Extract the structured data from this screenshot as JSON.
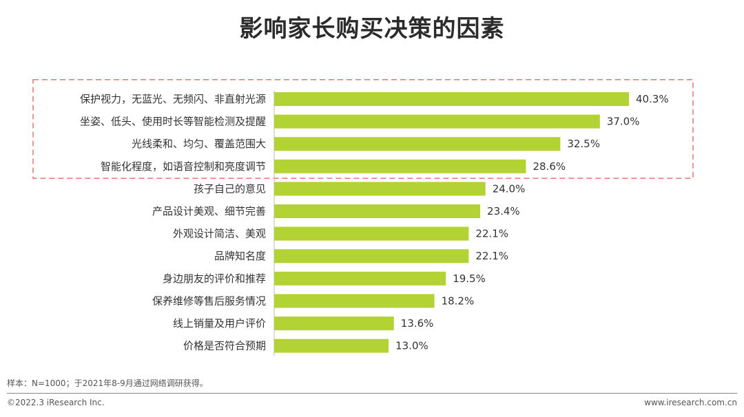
{
  "title": "影响家长购买决策的因素",
  "chart_data": {
    "type": "bar",
    "orientation": "horizontal",
    "categories": [
      "保护视力，无蓝光、无频闪、非直射光源",
      "坐姿、低头、使用时长等智能检测及提醒",
      "光线柔和、均匀、覆盖范围大",
      "智能化程度，如语音控制和亮度调节",
      "孩子自己的意见",
      "产品设计美观、细节完善",
      "外观设计简洁、美观",
      "品牌知名度",
      "身边朋友的评价和推荐",
      "保养维修等售后服务情况",
      "线上销量及用户评价",
      "价格是否符合预期"
    ],
    "values": [
      40.3,
      37.0,
      32.5,
      28.6,
      24.0,
      23.4,
      22.1,
      22.1,
      19.5,
      18.2,
      13.6,
      13.0
    ],
    "value_labels": [
      "40.3%",
      "37.0%",
      "32.5%",
      "28.6%",
      "24.0%",
      "23.4%",
      "22.1%",
      "22.1%",
      "19.5%",
      "18.2%",
      "13.6%",
      "13.0%"
    ],
    "bar_color": "#b3d335",
    "highlight_color": "#e57373",
    "highlight_count": 4,
    "xlim": [
      0,
      45
    ],
    "grid": false,
    "legend": "none"
  },
  "note": "样本：N=1000；于2021年8-9月通过网络调研获得。",
  "footer": {
    "copyright": "©2022.3 iResearch Inc.",
    "website": "www.iresearch.com.cn"
  }
}
